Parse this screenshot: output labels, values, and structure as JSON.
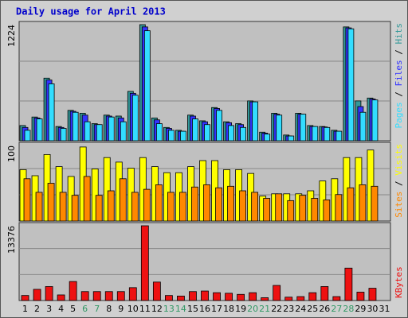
{
  "chart_data": {
    "type": "bar",
    "title": "Daily usage for April 2013",
    "categories": [
      "1",
      "2",
      "3",
      "4",
      "5",
      "6",
      "7",
      "8",
      "9",
      "10",
      "11",
      "12",
      "13",
      "14",
      "15",
      "16",
      "17",
      "18",
      "19",
      "20",
      "21",
      "22",
      "23",
      "24",
      "25",
      "26",
      "27",
      "28",
      "29",
      "30",
      "31"
    ],
    "category_colors": [
      "#000",
      "#000",
      "#000",
      "#000",
      "#000",
      "#339966",
      "#339966",
      "#000",
      "#000",
      "#000",
      "#000",
      "#000",
      "#339966",
      "#339966",
      "#000",
      "#000",
      "#000",
      "#000",
      "#000",
      "#339966",
      "#339966",
      "#000",
      "#000",
      "#000",
      "#000",
      "#000",
      "#339966",
      "#339966",
      "#000",
      "#000",
      "#000"
    ],
    "legend_separator": " / ",
    "panels": [
      {
        "ylim": [
          0,
          1224
        ],
        "yticks": [
          1224
        ],
        "series": [
          {
            "name": "Hits",
            "color": "#339999",
            "values": [
              160,
              250,
              660,
              150,
              320,
              290,
              180,
              270,
              260,
              520,
              1224,
              240,
              140,
              110,
              270,
              210,
              350,
              200,
              180,
              420,
              90,
              290,
              60,
              290,
              160,
              150,
              110,
              1200,
              420,
              450,
              null
            ]
          },
          {
            "name": "Files",
            "color": "#3333ff",
            "values": [
              140,
              240,
              640,
              140,
              310,
              270,
              170,
              260,
              240,
              500,
              1200,
              220,
              130,
              100,
              260,
              200,
              340,
              190,
              170,
              410,
              80,
              280,
              50,
              280,
              150,
              145,
              100,
              1190,
              360,
              440,
              null
            ]
          },
          {
            "name": "Pages",
            "color": "#33ddff",
            "values": [
              110,
              230,
              600,
              130,
              300,
              200,
              170,
              250,
              200,
              480,
              1160,
              180,
              110,
              100,
              230,
              170,
              320,
              160,
              140,
              410,
              70,
              270,
              50,
              280,
              150,
              140,
              100,
              1180,
              300,
              430,
              null
            ]
          }
        ]
      },
      {
        "ylim": [
          0,
          100
        ],
        "yticks": [
          100
        ],
        "series": [
          {
            "name": "Visits",
            "color": "#ffff00",
            "values": [
              68,
              60,
              88,
              72,
              59,
              98,
              69,
              84,
              78,
              70,
              84,
              72,
              64,
              64,
              72,
              80,
              80,
              68,
              68,
              63,
              33,
              36,
              36,
              36,
              40,
              53,
              56,
              84,
              84,
              94,
              null
            ]
          },
          {
            "name": "Sites",
            "color": "#ff8800",
            "values": [
              56,
              38,
              50,
              38,
              34,
              59,
              34,
              40,
              56,
              38,
              42,
              48,
              38,
              38,
              45,
              48,
              44,
              46,
              40,
              38,
              30,
              36,
              27,
              34,
              30,
              28,
              35,
              44,
              48,
              46,
              null
            ]
          }
        ]
      },
      {
        "ylim": [
          0,
          13376
        ],
        "yticks": [
          13376
        ],
        "series": [
          {
            "name": "KBytes",
            "color": "#ee1111",
            "values": [
              900,
              2000,
              2500,
              1000,
              3400,
              1600,
              1600,
              1600,
              1600,
              2300,
              13376,
              3300,
              900,
              800,
              1600,
              1700,
              1400,
              1300,
              1100,
              1400,
              500,
              2700,
              600,
              700,
              1400,
              2500,
              700,
              5800,
              1500,
              2200,
              null
            ]
          }
        ]
      }
    ]
  }
}
